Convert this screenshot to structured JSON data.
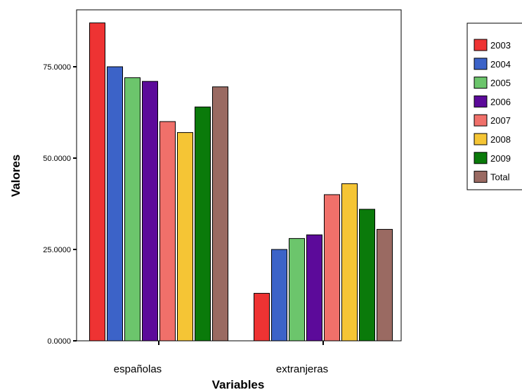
{
  "chart_data": {
    "type": "bar",
    "xlabel": "Variables",
    "ylabel": "Valores",
    "categories": [
      "españolas",
      "extranjeras"
    ],
    "ylim": [
      0,
      87
    ],
    "yticks": [
      "0.0000",
      "25.0000",
      "50.0000",
      "75.0000"
    ],
    "ytick_values": [
      0,
      25,
      50,
      75
    ],
    "grid": false,
    "legend_position": "right",
    "series": [
      {
        "name": "2003",
        "color": "#ee3333",
        "values": [
          87,
          13
        ]
      },
      {
        "name": "2004",
        "color": "#3c63c8",
        "values": [
          75,
          25
        ]
      },
      {
        "name": "2005",
        "color": "#6cc56c",
        "values": [
          72,
          28
        ]
      },
      {
        "name": "2006",
        "color": "#5c0a9a",
        "values": [
          71,
          29
        ]
      },
      {
        "name": "2007",
        "color": "#f0706a",
        "values": [
          60,
          40
        ]
      },
      {
        "name": "2008",
        "color": "#f5c535",
        "values": [
          57,
          43
        ]
      },
      {
        "name": "2009",
        "color": "#0a7a0a",
        "values": [
          64,
          36
        ]
      },
      {
        "name": "Total",
        "color": "#9a6a62",
        "values": [
          69.5,
          30.5
        ]
      }
    ]
  }
}
